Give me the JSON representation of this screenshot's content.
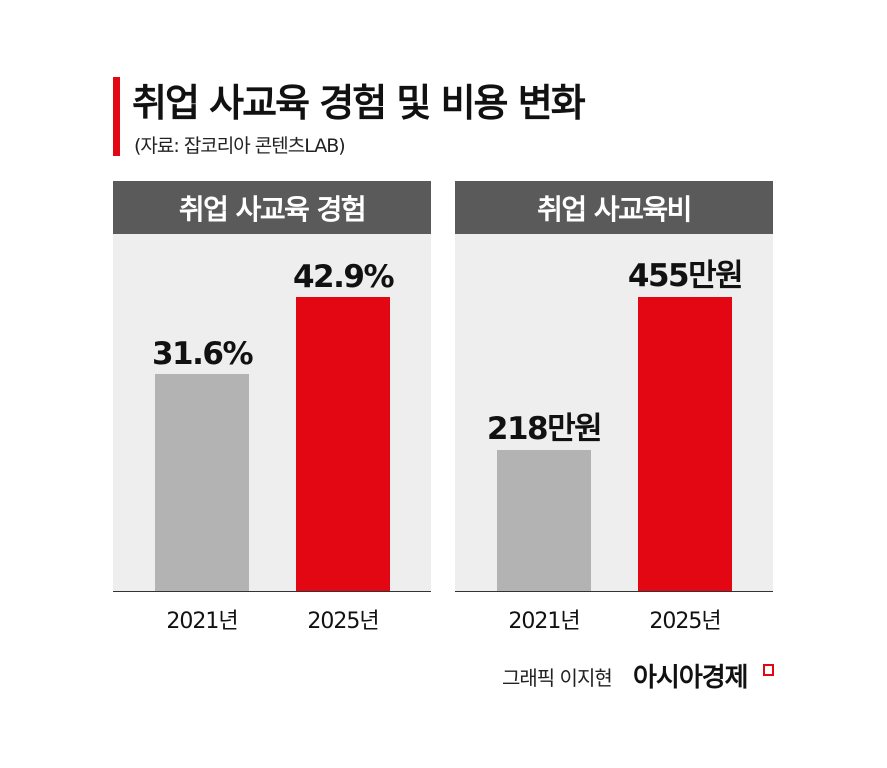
{
  "header": {
    "title": "취업 사교육 경험 및 비용 변화",
    "subtitle": "(자료: 잡코리아 콘텐츠LAB)"
  },
  "colors": {
    "accent": "#e30613",
    "prior": "#b3b3b3",
    "current": "#e30613",
    "panel_header": "#5a5a5a",
    "panel_bg": "#eeeeee"
  },
  "chart_data": [
    {
      "type": "bar",
      "title": "취업 사교육 경험",
      "categories": [
        "2021년",
        "2025년"
      ],
      "values": [
        31.6,
        42.9
      ],
      "data_labels": [
        "31.6%",
        "42.9%"
      ],
      "unit": "%",
      "grid": false
    },
    {
      "type": "bar",
      "title": "취업 사교육비",
      "categories": [
        "2021년",
        "2025년"
      ],
      "values": [
        218,
        455
      ],
      "data_labels": [
        "218만원",
        "455만원"
      ],
      "unit": "만원",
      "grid": false
    }
  ],
  "footer": {
    "credit": "그래픽 이지현",
    "logo": "아시아경제"
  }
}
